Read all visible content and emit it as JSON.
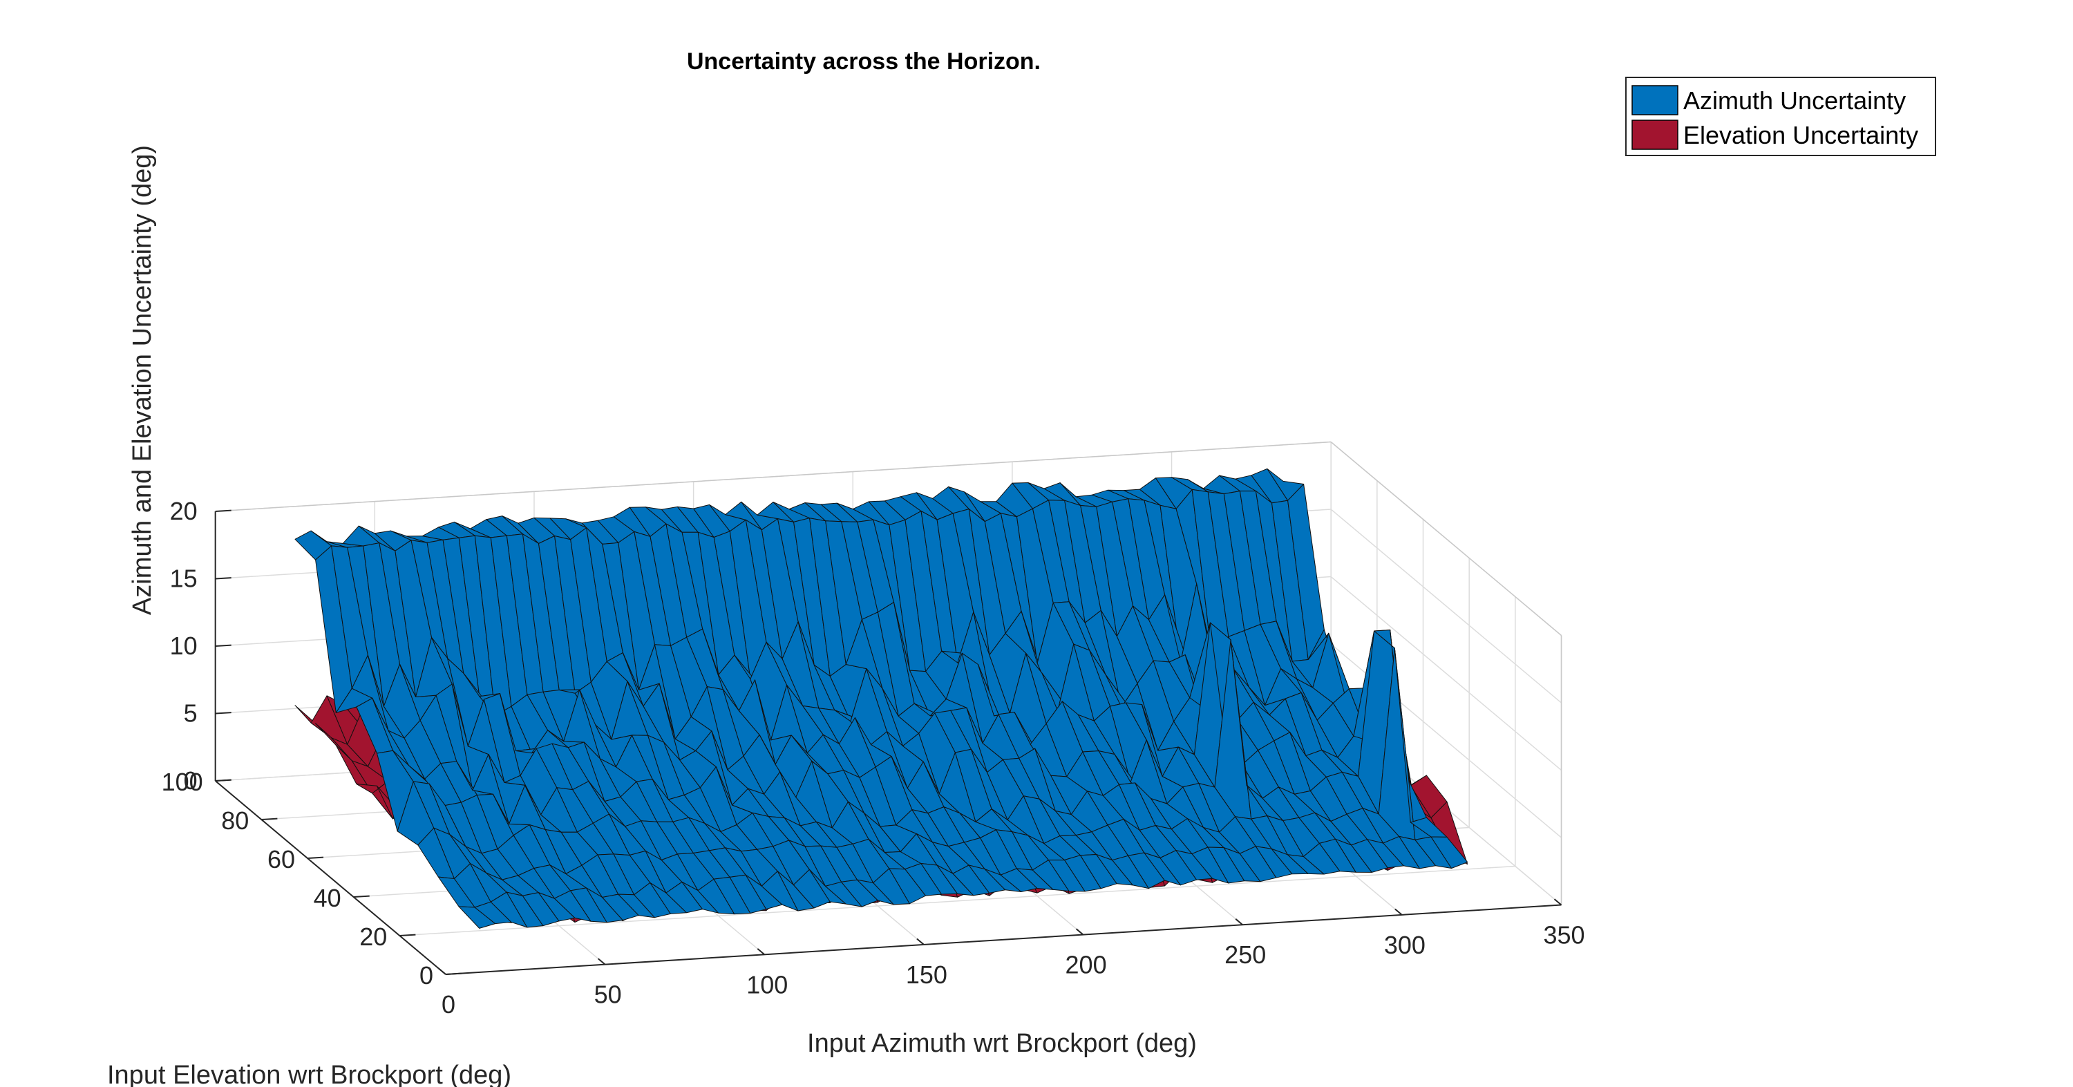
{
  "chart_data": {
    "type": "surface",
    "title": "Uncertainty across the Horizon.",
    "xlabel": "Input Azimuth wrt Brockport (deg)",
    "ylabel": "Input Elevation wrt Brockport (deg)",
    "zlabel": "Azimuth and Elevation Uncertainty (deg)",
    "xlim": [
      0,
      350
    ],
    "ylim": [
      0,
      100
    ],
    "zlim": [
      0,
      20
    ],
    "xticks": [
      "0",
      "50",
      "100",
      "150",
      "200",
      "250",
      "300",
      "350"
    ],
    "yticks": [
      "0",
      "20",
      "40",
      "60",
      "80",
      "100"
    ],
    "zticks": [
      "0",
      "5",
      "10",
      "15",
      "20"
    ],
    "grid": true,
    "legend_position": "top-right",
    "series": [
      {
        "name": "Azimuth Uncertainty",
        "color": "#0072BD",
        "typical_range": [
          0,
          18
        ]
      },
      {
        "name": "Elevation Uncertainty",
        "color": "#A2142F",
        "typical_range": [
          0,
          11
        ]
      }
    ]
  }
}
